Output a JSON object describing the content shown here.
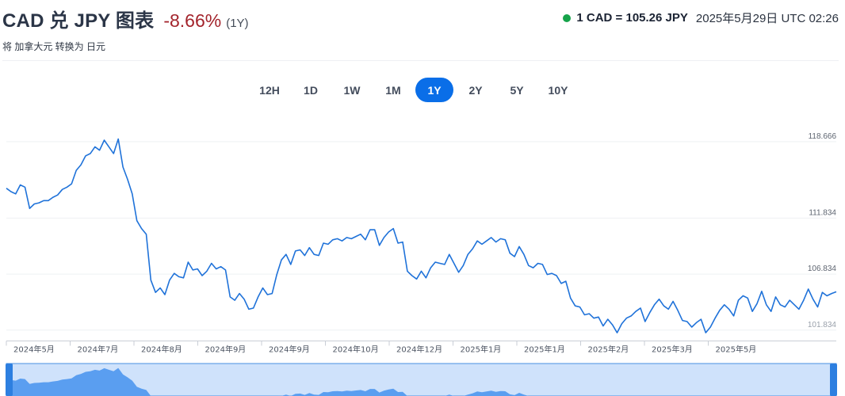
{
  "header": {
    "title": "CAD 兑 JPY 图表",
    "change": "-8.66%",
    "period": "(1Y)",
    "subtitle": "将 加拿大元 转换为 日元",
    "rate": "1 CAD = 105.26 JPY",
    "timestamp": "2025年5月29日 UTC 02:26"
  },
  "tabs": [
    {
      "label": "12H",
      "active": false
    },
    {
      "label": "1D",
      "active": false
    },
    {
      "label": "1W",
      "active": false
    },
    {
      "label": "1M",
      "active": false
    },
    {
      "label": "1Y",
      "active": true
    },
    {
      "label": "2Y",
      "active": false
    },
    {
      "label": "5Y",
      "active": false
    },
    {
      "label": "10Y",
      "active": false
    }
  ],
  "colors": {
    "accent": "#0a6ee8",
    "line": "#1f72d9",
    "negative": "#a3242c",
    "live": "#16a34a",
    "navigator_fill": "#5a9ef0",
    "navigator_bg": "#cfe2fb"
  },
  "chart_data": {
    "type": "line",
    "title": "",
    "xlabel": "",
    "ylabel": "",
    "y_ticks": [
      "118.666",
      "111.834",
      "106.834",
      "101.834"
    ],
    "ylim": [
      100.9,
      120.0
    ],
    "x_ticks": [
      "2024年5月",
      "2024年7月",
      "2024年8月",
      "2024年9月",
      "2024年9月",
      "2024年10月",
      "2024年12月",
      "2025年1月",
      "2025年1月",
      "2025年2月",
      "2025年3月",
      "2025年5月"
    ],
    "series": [
      {
        "name": "",
        "values": [
          114.5,
          114.2,
          114.0,
          114.8,
          114.6,
          112.7,
          113.1,
          113.2,
          113.4,
          113.4,
          113.7,
          113.9,
          114.4,
          114.6,
          114.9,
          116.1,
          116.6,
          117.4,
          117.6,
          118.2,
          117.9,
          118.8,
          118.2,
          117.6,
          118.9,
          116.4,
          115.3,
          114.0,
          111.6,
          110.9,
          110.4,
          106.3,
          105.2,
          105.6,
          105.0,
          106.3,
          106.9,
          106.6,
          106.5,
          107.9,
          107.2,
          107.3,
          106.7,
          107.1,
          107.8,
          107.3,
          107.5,
          107.2,
          104.8,
          104.5,
          105.1,
          104.6,
          103.7,
          103.8,
          104.8,
          105.6,
          105.0,
          105.1,
          106.8,
          108.1,
          108.6,
          107.7,
          108.9,
          109.0,
          108.5,
          109.2,
          108.6,
          108.5,
          109.6,
          109.5,
          109.9,
          110.0,
          109.8,
          110.1,
          110.0,
          110.2,
          110.4,
          109.9,
          110.8,
          110.8,
          109.4,
          110.1,
          110.6,
          110.9,
          109.6,
          109.7,
          107.1,
          106.7,
          106.4,
          107.1,
          106.5,
          107.4,
          107.9,
          107.8,
          107.7,
          108.6,
          107.8,
          107.0,
          107.6,
          108.6,
          109.1,
          109.8,
          109.5,
          109.8,
          110.1,
          109.7,
          110.0,
          109.9,
          108.7,
          108.4,
          109.3,
          108.6,
          107.6,
          107.4,
          107.8,
          107.7,
          106.8,
          106.9,
          106.7,
          106.0,
          106.2,
          104.7,
          104.0,
          103.9,
          103.2,
          103.3,
          102.9,
          103.0,
          102.2,
          102.8,
          102.3,
          101.6,
          102.4,
          102.9,
          103.1,
          103.5,
          103.8,
          102.6,
          103.4,
          104.1,
          104.6,
          104.0,
          103.7,
          104.4,
          103.6,
          102.7,
          102.6,
          102.1,
          102.5,
          102.8,
          101.6,
          102.1,
          102.9,
          103.6,
          104.1,
          103.7,
          103.1,
          104.5,
          104.9,
          104.7,
          103.5,
          104.2,
          105.3,
          104.1,
          103.5,
          104.8,
          104.1,
          103.9,
          104.5,
          104.1,
          103.7,
          104.5,
          105.5,
          104.6,
          103.9,
          105.2,
          104.9,
          105.1,
          105.26
        ]
      }
    ],
    "grid": false,
    "legend": "none"
  }
}
